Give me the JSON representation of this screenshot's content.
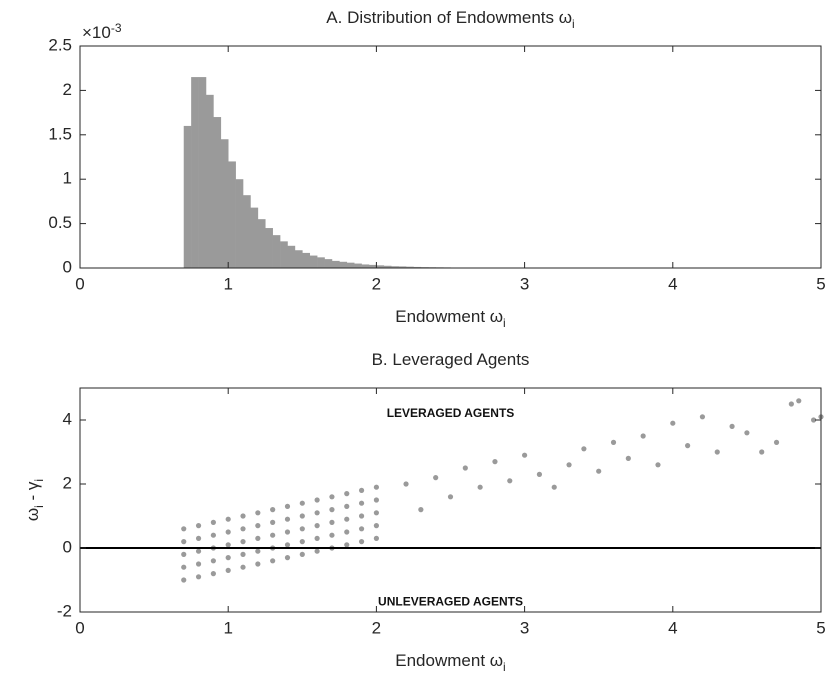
{
  "chart_data": [
    {
      "type": "histogram",
      "title": "A. Distribution of Endowments ω",
      "title_sub": "i",
      "xlabel": "Endowment ω",
      "xlabel_sub": "i",
      "y_multiplier": "×10",
      "y_multiplier_exp": "-3",
      "color": "#9a9a9a",
      "bins": [
        0.7,
        0.75,
        0.8,
        0.85,
        0.9,
        0.95,
        1.0,
        1.05,
        1.1,
        1.15,
        1.2,
        1.25,
        1.3,
        1.35,
        1.4,
        1.45,
        1.5,
        1.55,
        1.6,
        1.65,
        1.7,
        1.75,
        1.8,
        1.85,
        1.9,
        1.95,
        2.0,
        2.05,
        2.1,
        2.15,
        2.2,
        2.25,
        2.3,
        2.35,
        2.4,
        2.45,
        2.5
      ],
      "values": [
        1.6,
        2.15,
        2.15,
        1.95,
        1.7,
        1.45,
        1.2,
        1.0,
        0.82,
        0.68,
        0.55,
        0.45,
        0.37,
        0.3,
        0.25,
        0.2,
        0.17,
        0.14,
        0.12,
        0.1,
        0.08,
        0.07,
        0.06,
        0.05,
        0.04,
        0.035,
        0.03,
        0.025,
        0.02,
        0.018,
        0.015,
        0.012,
        0.01,
        0.009,
        0.008,
        0.007
      ],
      "xlim": [
        0,
        5
      ],
      "xticks": [
        0,
        1,
        2,
        3,
        4,
        5
      ],
      "ylim": [
        0,
        2.5
      ],
      "yticks": [
        0,
        0.5,
        1,
        1.5,
        2,
        2.5
      ]
    },
    {
      "type": "scatter",
      "title": "B. Leveraged Agents",
      "xlabel": "Endowment ω",
      "xlabel_sub": "i",
      "ylabel": "ω",
      "ylabel_sub1": "i",
      "ylabel_mid": " - γ",
      "ylabel_sub2": "i",
      "color": "#9a9a9a",
      "hline": 0,
      "hline_color": "#000000",
      "annotations": [
        {
          "text": "LEVERAGED AGENTS",
          "x": 2.5,
          "y": 4.2
        },
        {
          "text": "UNLEVERAGED AGENTS",
          "x": 2.5,
          "y": -1.7
        }
      ],
      "x": [
        0.7,
        0.7,
        0.7,
        0.7,
        0.7,
        0.8,
        0.8,
        0.8,
        0.8,
        0.8,
        0.9,
        0.9,
        0.9,
        0.9,
        0.9,
        1.0,
        1.0,
        1.0,
        1.0,
        1.0,
        1.1,
        1.1,
        1.1,
        1.1,
        1.1,
        1.2,
        1.2,
        1.2,
        1.2,
        1.2,
        1.3,
        1.3,
        1.3,
        1.3,
        1.3,
        1.4,
        1.4,
        1.4,
        1.4,
        1.4,
        1.5,
        1.5,
        1.5,
        1.5,
        1.5,
        1.6,
        1.6,
        1.6,
        1.6,
        1.6,
        1.7,
        1.7,
        1.7,
        1.7,
        1.7,
        1.8,
        1.8,
        1.8,
        1.8,
        1.8,
        1.9,
        1.9,
        1.9,
        1.9,
        1.9,
        2.0,
        2.0,
        2.0,
        2.0,
        2.0,
        2.2,
        2.3,
        2.4,
        2.5,
        2.6,
        2.7,
        2.8,
        2.9,
        3.0,
        3.1,
        3.2,
        3.3,
        3.4,
        3.5,
        3.6,
        3.7,
        3.8,
        3.9,
        4.0,
        4.1,
        4.2,
        4.3,
        4.5,
        4.6,
        4.8,
        4.85,
        5.0,
        4.95,
        4.4,
        4.7
      ],
      "y": [
        0.6,
        0.2,
        -0.2,
        -0.6,
        -1.0,
        0.7,
        0.3,
        -0.1,
        -0.5,
        -0.9,
        0.8,
        0.4,
        0,
        -0.4,
        -0.8,
        0.9,
        0.5,
        0.1,
        -0.3,
        -0.7,
        1.0,
        0.6,
        0.2,
        -0.2,
        -0.6,
        1.1,
        0.7,
        0.3,
        -0.1,
        -0.5,
        1.2,
        0.8,
        0.4,
        0,
        -0.4,
        1.3,
        0.9,
        0.5,
        0.1,
        -0.3,
        1.4,
        1.0,
        0.6,
        0.2,
        -0.2,
        1.5,
        1.1,
        0.7,
        0.3,
        -0.1,
        1.6,
        1.2,
        0.8,
        0.4,
        0,
        1.7,
        1.3,
        0.9,
        0.5,
        0.1,
        1.8,
        1.4,
        1.0,
        0.6,
        0.2,
        1.9,
        1.5,
        1.1,
        0.7,
        0.3,
        2.0,
        1.2,
        2.2,
        1.6,
        2.5,
        1.9,
        2.7,
        2.1,
        2.9,
        2.3,
        1.9,
        2.6,
        3.1,
        2.4,
        3.3,
        2.8,
        3.5,
        2.6,
        3.9,
        3.2,
        4.1,
        3.0,
        3.6,
        3.0,
        4.5,
        4.6,
        4.1,
        4.0,
        3.8,
        3.3
      ],
      "xlim": [
        0,
        5
      ],
      "xticks": [
        0,
        1,
        2,
        3,
        4,
        5
      ],
      "ylim": [
        -2,
        5
      ],
      "yticks": [
        -2,
        0,
        2,
        4
      ]
    }
  ]
}
